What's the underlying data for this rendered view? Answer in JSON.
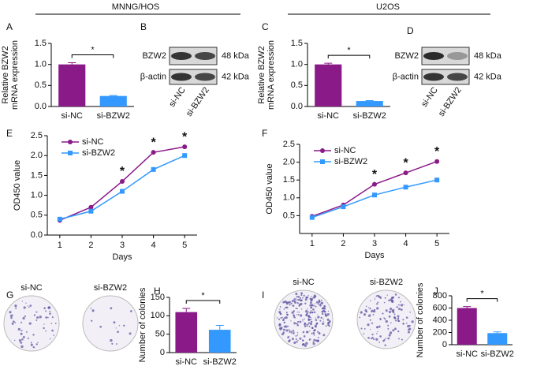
{
  "headers": [
    "MNNG/HOS",
    "U2OS"
  ],
  "blots": [
    {
      "panel": "B",
      "rows": [
        "BZW2",
        "β-actin"
      ],
      "sizes": [
        "48 kDa",
        "42 kDa"
      ],
      "lanes": [
        "si-NC",
        "si-BZW2"
      ]
    },
    {
      "panel": "D",
      "rows": [
        "BZW2",
        "β-actin"
      ],
      "sizes": [
        "48 kDa",
        "42 kDa"
      ],
      "lanes": [
        "si-NC",
        "si-BZW2"
      ]
    }
  ],
  "plates": [
    {
      "panel": "G",
      "labels": [
        "si-NC",
        "si-BZW2"
      ]
    },
    {
      "panel": "I",
      "labels": [
        "si-NC",
        "si-BZW2"
      ]
    }
  ],
  "chart_data": [
    {
      "type": "bar",
      "panel": "A",
      "ylabel": [
        "Relative BZW2",
        "mRNA expression"
      ],
      "categories": [
        "si-NC",
        "si-BZW2"
      ],
      "values": [
        1.0,
        0.25
      ],
      "errors": [
        0.04,
        0.01
      ],
      "colors": [
        "#8b1a89",
        "#3399ff"
      ],
      "annotation": "*",
      "ylim": [
        0,
        1.5
      ],
      "yticks": [
        {
          "value": 0,
          "label": "0.0"
        },
        0.5,
        {
          "value": 1,
          "label": "1.0"
        },
        1.5
      ]
    },
    {
      "type": "bar",
      "panel": "C",
      "ylabel": [
        "Relative BZW2",
        "mRNA expression"
      ],
      "categories": [
        "si-NC",
        "si-BZW2"
      ],
      "values": [
        1.0,
        0.13
      ],
      "errors": [
        0.03,
        0.01
      ],
      "colors": [
        "#8b1a89",
        "#3399ff"
      ],
      "annotation": "*",
      "ylim": [
        0,
        1.5
      ],
      "yticks": [
        {
          "value": 0,
          "label": "0.0"
        },
        0.5,
        {
          "value": 1,
          "label": "1.0"
        },
        1.5
      ]
    },
    {
      "type": "line",
      "panel": "E",
      "xlabel": "Days",
      "ylabel": [
        "OD450 value"
      ],
      "x": [
        1,
        2,
        3,
        4,
        5
      ],
      "series": [
        {
          "name": "si-NC",
          "color": "#8b1a89",
          "marker": "circle",
          "values": [
            0.37,
            0.7,
            1.35,
            2.08,
            2.22
          ]
        },
        {
          "name": "si-BZW2",
          "color": "#3399ff",
          "marker": "square",
          "values": [
            0.4,
            0.6,
            1.1,
            1.65,
            2.0
          ]
        }
      ],
      "annotation": "*",
      "significant_x": [
        3,
        4,
        5
      ],
      "legend": "upper left",
      "xlim": [
        0.6,
        5.4
      ],
      "xticks": [
        1,
        2,
        3,
        4,
        5
      ],
      "ylim": [
        0,
        2.5
      ],
      "yticks": [
        {
          "value": 0,
          "label": "0.0"
        },
        0.5,
        {
          "value": 1,
          "label": "1.0"
        },
        1.5,
        {
          "value": 2,
          "label": "2.0"
        },
        2.5
      ]
    },
    {
      "type": "line",
      "panel": "F",
      "xlabel": "Days",
      "ylabel": [
        "OD450 value"
      ],
      "x": [
        1,
        2,
        3,
        4,
        5
      ],
      "series": [
        {
          "name": "si-NC",
          "color": "#8b1a89",
          "marker": "circle",
          "values": [
            0.48,
            0.8,
            1.38,
            1.7,
            2.02
          ]
        },
        {
          "name": "si-BZW2",
          "color": "#3399ff",
          "marker": "square",
          "values": [
            0.45,
            0.75,
            1.08,
            1.3,
            1.5
          ]
        }
      ],
      "annotation": "*",
      "significant_x": [
        3,
        4,
        5
      ],
      "legend": "upper left",
      "xlim": [
        0.6,
        5.4
      ],
      "xticks": [
        1,
        2,
        3,
        4,
        5
      ],
      "ylim": [
        0,
        2.5
      ],
      "yticks": [
        0.5,
        {
          "value": 1,
          "label": "1.0"
        },
        1.5,
        {
          "value": 2,
          "label": "2.0"
        },
        2.5
      ]
    },
    {
      "type": "bar",
      "panel": "H",
      "ylabel": [
        "Number of colonies"
      ],
      "categories": [
        "si-NC",
        "si-BZW2"
      ],
      "values": [
        110,
        62
      ],
      "errors": [
        10,
        12
      ],
      "colors": [
        "#8b1a89",
        "#3399ff"
      ],
      "annotation": "*",
      "ylim": [
        0,
        150
      ],
      "yticks": [
        0,
        50,
        100,
        150
      ]
    },
    {
      "type": "bar",
      "panel": "J",
      "ylabel": [
        "Number of colonies"
      ],
      "categories": [
        "si-NC",
        "si-BZW2"
      ],
      "values": [
        600,
        190
      ],
      "errors": [
        25,
        20
      ],
      "colors": [
        "#8b1a89",
        "#3399ff"
      ],
      "annotation": "*",
      "ylim": [
        0,
        800
      ],
      "yticks": [
        0,
        200,
        400,
        600,
        800
      ]
    }
  ]
}
